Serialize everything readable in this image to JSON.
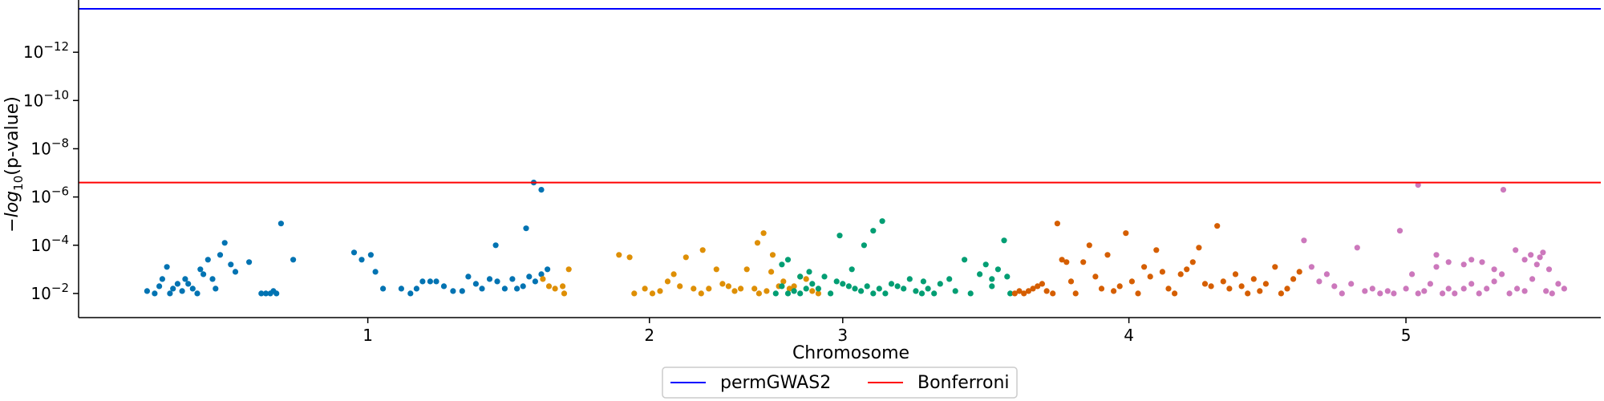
{
  "chart_data": {
    "type": "scatter",
    "title": "",
    "xlabel": "Chromosome",
    "ylabel_prefix": "−log",
    "ylabel_sub": "10",
    "ylabel_suffix": "(p-value)",
    "x_ticks": [
      {
        "label": "1",
        "pos": 0.19
      },
      {
        "label": "2",
        "pos": 0.375
      },
      {
        "label": "3",
        "pos": 0.502
      },
      {
        "label": "4",
        "pos": 0.69
      },
      {
        "label": "5",
        "pos": 0.872
      }
    ],
    "y_scale": "log",
    "y_ticks": [
      {
        "base": "10",
        "exp": "−2",
        "exponent": -2
      },
      {
        "base": "10",
        "exp": "−4",
        "exponent": -4
      },
      {
        "base": "10",
        "exp": "−6",
        "exponent": -6
      },
      {
        "base": "10",
        "exp": "−8",
        "exponent": -8
      },
      {
        "base": "10",
        "exp": "−10",
        "exponent": -10
      },
      {
        "base": "10",
        "exp": "−12",
        "exponent": -12
      }
    ],
    "ylim_exponent": [
      -1.0,
      -13.9
    ],
    "thresholds": [
      {
        "name": "permGWAS2",
        "color": "#0000ff",
        "exponent": -13.8
      },
      {
        "name": "Bonferroni",
        "color": "#ff0000",
        "exponent": -6.6
      }
    ],
    "legend_position": "bottom-center",
    "series": [
      {
        "color": "#0173b2",
        "points": [
          [
            0.045,
            -2.1
          ],
          [
            0.05,
            -2.0
          ],
          [
            0.053,
            -2.3
          ],
          [
            0.055,
            -2.6
          ],
          [
            0.058,
            -3.1
          ],
          [
            0.06,
            -2.0
          ],
          [
            0.062,
            -2.2
          ],
          [
            0.065,
            -2.4
          ],
          [
            0.068,
            -2.1
          ],
          [
            0.07,
            -2.6
          ],
          [
            0.072,
            -2.4
          ],
          [
            0.075,
            -2.2
          ],
          [
            0.078,
            -2.0
          ],
          [
            0.08,
            -3.0
          ],
          [
            0.082,
            -2.8
          ],
          [
            0.085,
            -3.4
          ],
          [
            0.088,
            -2.6
          ],
          [
            0.09,
            -2.2
          ],
          [
            0.093,
            -3.6
          ],
          [
            0.096,
            -4.1
          ],
          [
            0.1,
            -3.2
          ],
          [
            0.103,
            -2.9
          ],
          [
            0.112,
            -3.3
          ],
          [
            0.12,
            -2.0
          ],
          [
            0.123,
            -2.0
          ],
          [
            0.126,
            -2.0
          ],
          [
            0.128,
            -2.1
          ],
          [
            0.13,
            -2.0
          ],
          [
            0.133,
            -4.9
          ],
          [
            0.141,
            -3.4
          ],
          [
            0.181,
            -3.7
          ],
          [
            0.186,
            -3.4
          ],
          [
            0.192,
            -3.6
          ],
          [
            0.195,
            -2.9
          ],
          [
            0.2,
            -2.2
          ],
          [
            0.212,
            -2.2
          ],
          [
            0.218,
            -2.0
          ],
          [
            0.222,
            -2.2
          ],
          [
            0.226,
            -2.5
          ],
          [
            0.231,
            -2.5
          ],
          [
            0.235,
            -2.5
          ],
          [
            0.24,
            -2.3
          ],
          [
            0.246,
            -2.1
          ],
          [
            0.252,
            -2.1
          ],
          [
            0.256,
            -2.7
          ],
          [
            0.261,
            -2.4
          ],
          [
            0.265,
            -2.2
          ],
          [
            0.27,
            -2.6
          ],
          [
            0.275,
            -2.5
          ],
          [
            0.28,
            -2.2
          ],
          [
            0.285,
            -2.6
          ],
          [
            0.288,
            -2.2
          ],
          [
            0.292,
            -2.3
          ],
          [
            0.296,
            -2.7
          ],
          [
            0.3,
            -2.5
          ],
          [
            0.304,
            -2.8
          ],
          [
            0.308,
            -3.0
          ],
          [
            0.274,
            -4.0
          ],
          [
            0.294,
            -4.7
          ],
          [
            0.299,
            -6.6
          ],
          [
            0.304,
            -6.3
          ]
        ]
      },
      {
        "color": "#de8f05",
        "points": [
          [
            0.305,
            -2.6
          ],
          [
            0.309,
            -2.3
          ],
          [
            0.313,
            -2.2
          ],
          [
            0.318,
            -2.3
          ],
          [
            0.322,
            -3.0
          ],
          [
            0.319,
            -2.0
          ],
          [
            0.355,
            -3.6
          ],
          [
            0.362,
            -3.5
          ],
          [
            0.365,
            -2.0
          ],
          [
            0.372,
            -2.2
          ],
          [
            0.377,
            -2.0
          ],
          [
            0.382,
            -2.1
          ],
          [
            0.387,
            -2.5
          ],
          [
            0.391,
            -2.8
          ],
          [
            0.395,
            -2.3
          ],
          [
            0.399,
            -3.5
          ],
          [
            0.404,
            -2.2
          ],
          [
            0.409,
            -2.0
          ],
          [
            0.414,
            -2.2
          ],
          [
            0.419,
            -3.0
          ],
          [
            0.423,
            -2.4
          ],
          [
            0.427,
            -2.3
          ],
          [
            0.431,
            -2.1
          ],
          [
            0.435,
            -2.2
          ],
          [
            0.439,
            -3.0
          ],
          [
            0.444,
            -2.2
          ],
          [
            0.447,
            -2.0
          ],
          [
            0.452,
            -2.1
          ],
          [
            0.456,
            -3.6
          ],
          [
            0.46,
            -2.3
          ],
          [
            0.463,
            -2.5
          ],
          [
            0.467,
            -2.2
          ],
          [
            0.47,
            -2.3
          ],
          [
            0.474,
            -2.7
          ],
          [
            0.478,
            -2.6
          ],
          [
            0.482,
            -2.1
          ],
          [
            0.486,
            -2.0
          ],
          [
            0.41,
            -3.8
          ],
          [
            0.446,
            -4.1
          ],
          [
            0.45,
            -4.5
          ],
          [
            0.455,
            -2.9
          ]
        ]
      },
      {
        "color": "#029e73",
        "points": [
          [
            0.458,
            -2.0
          ],
          [
            0.462,
            -2.3
          ],
          [
            0.466,
            -2.0
          ],
          [
            0.47,
            -2.1
          ],
          [
            0.474,
            -2.0
          ],
          [
            0.478,
            -2.2
          ],
          [
            0.482,
            -2.4
          ],
          [
            0.486,
            -2.2
          ],
          [
            0.49,
            -2.7
          ],
          [
            0.494,
            -2.0
          ],
          [
            0.498,
            -2.5
          ],
          [
            0.502,
            -2.4
          ],
          [
            0.506,
            -2.3
          ],
          [
            0.51,
            -2.2
          ],
          [
            0.514,
            -2.1
          ],
          [
            0.518,
            -2.3
          ],
          [
            0.522,
            -2.0
          ],
          [
            0.526,
            -2.2
          ],
          [
            0.53,
            -2.0
          ],
          [
            0.534,
            -2.4
          ],
          [
            0.538,
            -2.3
          ],
          [
            0.542,
            -2.2
          ],
          [
            0.546,
            -2.6
          ],
          [
            0.55,
            -2.1
          ],
          [
            0.554,
            -2.0
          ],
          [
            0.558,
            -2.2
          ],
          [
            0.462,
            -3.2
          ],
          [
            0.466,
            -3.4
          ],
          [
            0.474,
            -2.7
          ],
          [
            0.5,
            -4.4
          ],
          [
            0.508,
            -3.0
          ],
          [
            0.516,
            -4.0
          ],
          [
            0.522,
            -4.6
          ],
          [
            0.528,
            -5.0
          ],
          [
            0.48,
            -2.9
          ],
          [
            0.555,
            -2.5
          ],
          [
            0.562,
            -2.0
          ],
          [
            0.566,
            -2.4
          ],
          [
            0.572,
            -2.6
          ],
          [
            0.576,
            -2.1
          ],
          [
            0.582,
            -3.4
          ],
          [
            0.586,
            -2.0
          ],
          [
            0.592,
            -2.8
          ],
          [
            0.596,
            -3.2
          ],
          [
            0.6,
            -2.6
          ],
          [
            0.604,
            -3.0
          ],
          [
            0.608,
            -4.2
          ],
          [
            0.6,
            -2.3
          ],
          [
            0.61,
            -2.7
          ],
          [
            0.612,
            -2.0
          ]
        ]
      },
      {
        "color": "#d55e00",
        "points": [
          [
            0.615,
            -2.0
          ],
          [
            0.618,
            -2.1
          ],
          [
            0.621,
            -2.0
          ],
          [
            0.624,
            -2.1
          ],
          [
            0.627,
            -2.2
          ],
          [
            0.63,
            -2.3
          ],
          [
            0.633,
            -2.4
          ],
          [
            0.636,
            -2.1
          ],
          [
            0.64,
            -2.0
          ],
          [
            0.643,
            -4.9
          ],
          [
            0.646,
            -3.4
          ],
          [
            0.649,
            -3.3
          ],
          [
            0.652,
            -2.5
          ],
          [
            0.655,
            -2.0
          ],
          [
            0.66,
            -3.3
          ],
          [
            0.664,
            -4.0
          ],
          [
            0.668,
            -2.7
          ],
          [
            0.672,
            -2.2
          ],
          [
            0.676,
            -3.6
          ],
          [
            0.68,
            -2.1
          ],
          [
            0.684,
            -2.3
          ],
          [
            0.688,
            -4.5
          ],
          [
            0.692,
            -2.5
          ],
          [
            0.696,
            -2.0
          ],
          [
            0.7,
            -3.1
          ],
          [
            0.704,
            -2.7
          ],
          [
            0.708,
            -3.8
          ],
          [
            0.712,
            -2.9
          ],
          [
            0.716,
            -2.2
          ],
          [
            0.72,
            -2.0
          ],
          [
            0.724,
            -2.8
          ],
          [
            0.728,
            -3.0
          ],
          [
            0.732,
            -3.3
          ],
          [
            0.736,
            -3.9
          ],
          [
            0.74,
            -2.4
          ],
          [
            0.744,
            -2.3
          ],
          [
            0.748,
            -4.8
          ],
          [
            0.752,
            -2.5
          ],
          [
            0.756,
            -2.2
          ],
          [
            0.76,
            -2.8
          ],
          [
            0.764,
            -2.3
          ],
          [
            0.768,
            -2.0
          ],
          [
            0.772,
            -2.6
          ],
          [
            0.776,
            -2.1
          ],
          [
            0.78,
            -2.4
          ],
          [
            0.786,
            -3.1
          ],
          [
            0.79,
            -2.0
          ],
          [
            0.794,
            -2.2
          ],
          [
            0.798,
            -2.6
          ],
          [
            0.802,
            -2.9
          ]
        ]
      },
      {
        "color": "#cc78bc",
        "points": [
          [
            0.805,
            -4.2
          ],
          [
            0.81,
            -3.1
          ],
          [
            0.815,
            -2.5
          ],
          [
            0.82,
            -2.8
          ],
          [
            0.825,
            -2.3
          ],
          [
            0.83,
            -2.0
          ],
          [
            0.836,
            -2.4
          ],
          [
            0.84,
            -3.9
          ],
          [
            0.845,
            -2.1
          ],
          [
            0.85,
            -2.2
          ],
          [
            0.855,
            -2.0
          ],
          [
            0.86,
            -2.1
          ],
          [
            0.864,
            -2.0
          ],
          [
            0.868,
            -4.6
          ],
          [
            0.872,
            -2.2
          ],
          [
            0.876,
            -2.8
          ],
          [
            0.88,
            -2.0
          ],
          [
            0.884,
            -2.1
          ],
          [
            0.888,
            -2.4
          ],
          [
            0.892,
            -3.1
          ],
          [
            0.896,
            -2.0
          ],
          [
            0.9,
            -2.2
          ],
          [
            0.904,
            -2.0
          ],
          [
            0.91,
            -2.2
          ],
          [
            0.915,
            -2.4
          ],
          [
            0.92,
            -2.0
          ],
          [
            0.925,
            -2.2
          ],
          [
            0.93,
            -2.5
          ],
          [
            0.935,
            -2.8
          ],
          [
            0.94,
            -2.0
          ],
          [
            0.945,
            -2.2
          ],
          [
            0.95,
            -2.1
          ],
          [
            0.955,
            -2.6
          ],
          [
            0.96,
            -3.5
          ],
          [
            0.964,
            -2.1
          ],
          [
            0.968,
            -2.0
          ],
          [
            0.972,
            -2.4
          ],
          [
            0.976,
            -2.2
          ],
          [
            0.88,
            -6.5
          ],
          [
            0.936,
            -6.3
          ],
          [
            0.892,
            -3.6
          ],
          [
            0.9,
            -3.3
          ],
          [
            0.91,
            -3.2
          ],
          [
            0.915,
            -3.4
          ],
          [
            0.922,
            -3.3
          ],
          [
            0.93,
            -3.0
          ],
          [
            0.944,
            -3.8
          ],
          [
            0.95,
            -3.4
          ],
          [
            0.954,
            -3.6
          ],
          [
            0.958,
            -3.2
          ],
          [
            0.962,
            -3.7
          ],
          [
            0.966,
            -3.0
          ]
        ]
      }
    ]
  }
}
